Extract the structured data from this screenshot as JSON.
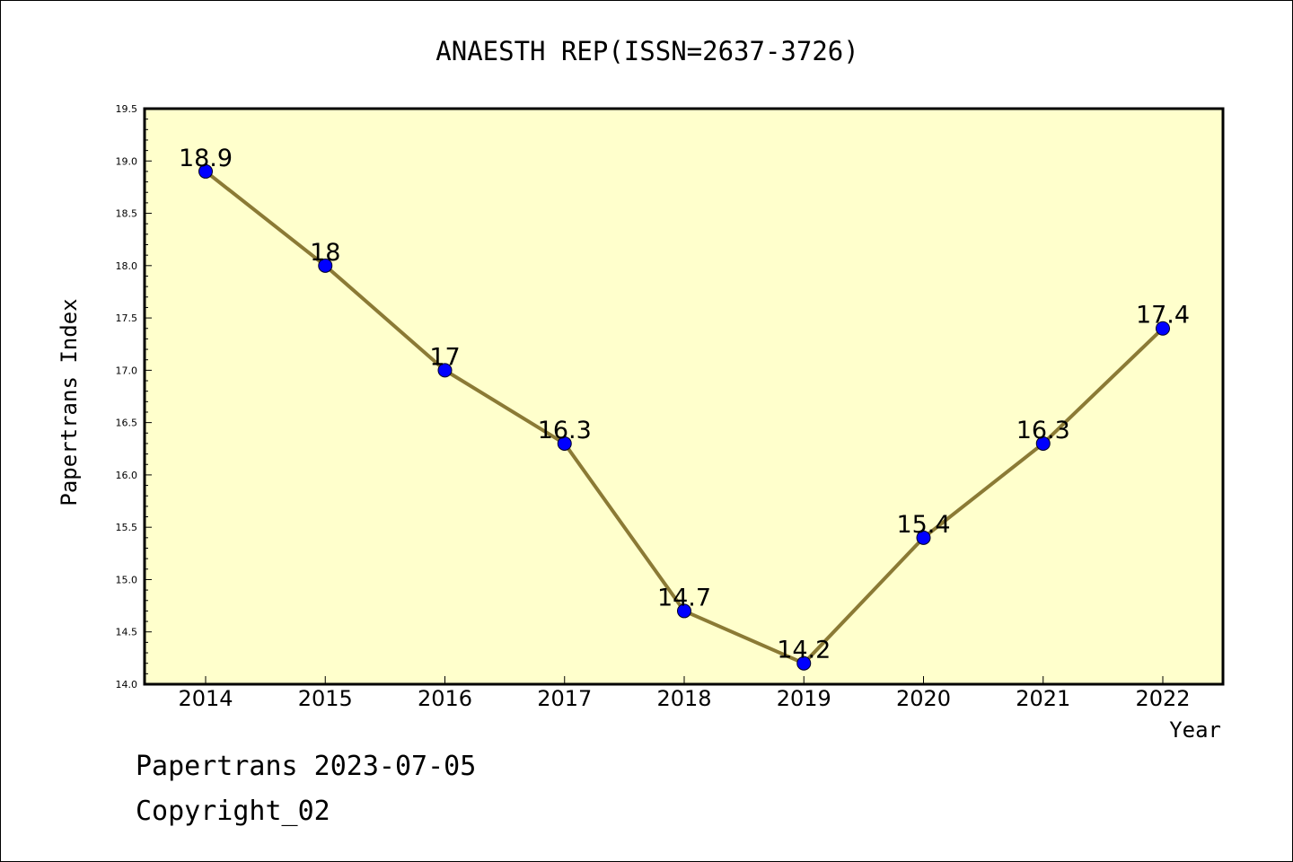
{
  "chart_data": {
    "type": "line",
    "title": "ANAESTH REP(ISSN=2637-3726)",
    "xlabel": "Year",
    "ylabel": "Papertrans Index",
    "categories": [
      "2014",
      "2015",
      "2016",
      "2017",
      "2018",
      "2019",
      "2020",
      "2021",
      "2022"
    ],
    "values": [
      18.9,
      18,
      17,
      16.3,
      14.7,
      14.2,
      15.4,
      16.3,
      17.4
    ],
    "data_labels": [
      "18.9",
      "18",
      "17",
      "16.3",
      "14.7",
      "14.2",
      "15.4",
      "16.3",
      "17.4"
    ],
    "ylim": [
      14.0,
      19.5
    ],
    "yticks": [
      "14.0",
      "14.5",
      "15.0",
      "15.5",
      "16.0",
      "16.5",
      "17.0",
      "17.5",
      "18.0",
      "18.5",
      "19.0",
      "19.5"
    ],
    "grid": false,
    "colors": {
      "plot_background": "#ffffcc",
      "line": "#8b7a35",
      "marker": "#0000ff"
    }
  },
  "footer": {
    "date_line": "Papertrans 2023-07-05",
    "copyright_line": "Copyright_02"
  }
}
